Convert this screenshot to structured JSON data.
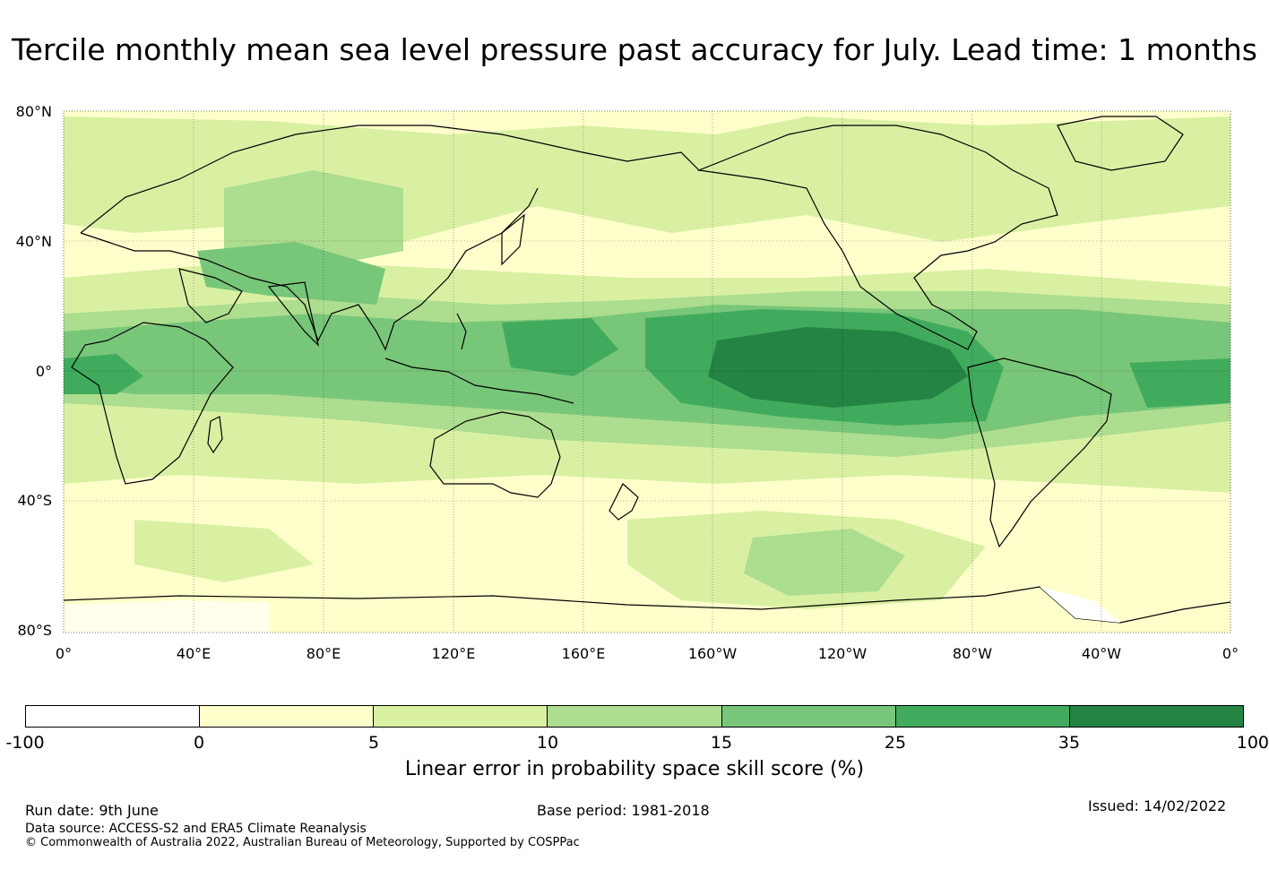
{
  "title": "Tercile monthly mean sea level pressure past accuracy for July. Lead time: 1 months",
  "map": {
    "lat_labels": [
      "80°N",
      "40°N",
      "0°",
      "40°S",
      "80°S"
    ],
    "lon_labels": [
      "0°",
      "40°E",
      "80°E",
      "120°E",
      "160°E",
      "160°W",
      "120°W",
      "80°W",
      "40°W",
      "0°"
    ],
    "land_color": "#ffffff",
    "grid": true
  },
  "colorbar": {
    "colors": [
      "#ffffff",
      "#ffffcc",
      "#d9f0a3",
      "#addd8e",
      "#78c679",
      "#41ab5d",
      "#238443"
    ],
    "ticks": [
      "-100",
      "0",
      "5",
      "10",
      "15",
      "25",
      "35",
      "100"
    ],
    "label": "Linear error in probability space skill score (%)"
  },
  "footer": {
    "run_date": "Run date: 9th June",
    "base_period": "Base period: 1981-2018",
    "issued": "Issued: 14/02/2022",
    "data_source": "Data source: ACCESS-S2 and ERA5 Climate Reanalysis",
    "copyright": "© Commonwealth of Australia 2022, Australian Bureau of Meteorology, Supported by COSPPac"
  }
}
